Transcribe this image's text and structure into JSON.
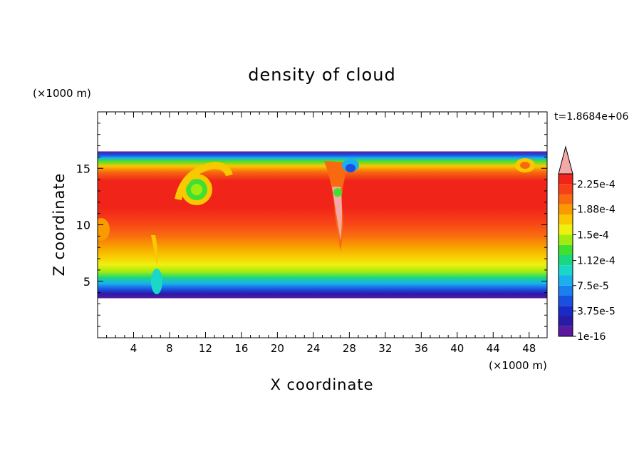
{
  "chart_data": {
    "type": "heatmap",
    "title": "density of cloud",
    "xlabel": "X coordinate",
    "ylabel": "Z coordinate",
    "x_unit": "(×1000 m)",
    "y_unit": "(×1000 m)",
    "time_label": "t=1.8684e+06",
    "xlim": [
      0,
      50
    ],
    "ylim": [
      0,
      20
    ],
    "x_ticks": [
      4,
      8,
      12,
      16,
      20,
      24,
      28,
      32,
      36,
      40,
      44,
      48
    ],
    "y_ticks": [
      5,
      10,
      15
    ],
    "cloud_base_km": 3.5,
    "cloud_top_km": 16.5,
    "colorbar": {
      "min_label": "1e-16",
      "labels": [
        "1e-16",
        "3.75e-5",
        "7.5e-5",
        "1.12e-4",
        "1.5e-4",
        "1.88e-4",
        "2.25e-4"
      ],
      "label_values": [
        0,
        3.75e-05,
        7.5e-05,
        0.000112,
        0.00015,
        0.000188,
        0.000225
      ],
      "levels": 16,
      "colors": [
        "#5a1aa0",
        "#2a1aa8",
        "#1a2ac4",
        "#1a50e0",
        "#1a80f0",
        "#1ab0f0",
        "#1ad8c8",
        "#1ad880",
        "#40e030",
        "#a0ec10",
        "#f0f010",
        "#f8c800",
        "#f89a00",
        "#f86a10",
        "#f84018",
        "#f02418"
      ],
      "extend_color": "#f4a8a8"
    }
  }
}
